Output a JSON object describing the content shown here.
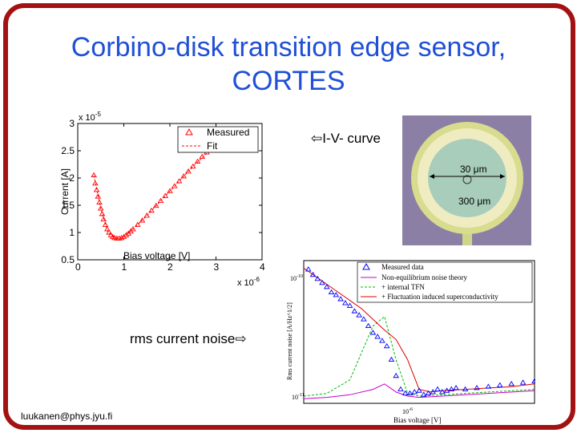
{
  "slide": {
    "title_line1": "Corbino-disk transition edge sensor,",
    "title_line2": "CORTES",
    "iv_label": "⇦I-V- curve",
    "noise_label": "rms current noise⇨",
    "email": "luukanen@phys.jyu.fi",
    "colors": {
      "title": "#1f4fd6",
      "frame": "#a31212"
    }
  },
  "photo": {
    "label_inner": "30 μm",
    "label_outer": "300 μm"
  },
  "chart_data": [
    {
      "type": "scatter",
      "xlabel": "Bias voltage [V]",
      "ylabel": "Current [A]",
      "x_multiplier": "x 10",
      "x_exponent": "-6",
      "y_multiplier": "x 10",
      "y_exponent": "-5",
      "xlim": [
        0,
        4
      ],
      "ylim": [
        0.5,
        3
      ],
      "x_ticks": [
        "0",
        "1",
        "2",
        "3",
        "4"
      ],
      "y_ticks": [
        "0.5",
        "1",
        "1.5",
        "2",
        "2.5",
        "3"
      ],
      "series": [
        {
          "name": "Measured",
          "marker": "triangle",
          "color": "#ff0000",
          "x": [
            0.35,
            0.38,
            0.41,
            0.44,
            0.47,
            0.5,
            0.53,
            0.56,
            0.6,
            0.64,
            0.68,
            0.72,
            0.76,
            0.8,
            0.85,
            0.9,
            0.95,
            1.0,
            1.05,
            1.1,
            1.15,
            1.2,
            1.3,
            1.4,
            1.5,
            1.6,
            1.7,
            1.8,
            1.9,
            2.0,
            2.1,
            2.2,
            2.3,
            2.4,
            2.5,
            2.6,
            2.7,
            2.8,
            2.9,
            3.0,
            3.05
          ],
          "y": [
            2.05,
            1.9,
            1.78,
            1.66,
            1.55,
            1.44,
            1.34,
            1.24,
            1.14,
            1.06,
            1.0,
            0.95,
            0.92,
            0.9,
            0.89,
            0.89,
            0.9,
            0.92,
            0.95,
            0.98,
            1.02,
            1.06,
            1.14,
            1.22,
            1.31,
            1.4,
            1.49,
            1.58,
            1.67,
            1.76,
            1.85,
            1.94,
            2.03,
            2.12,
            2.21,
            2.3,
            2.39,
            2.47,
            2.55,
            2.62,
            2.66
          ]
        },
        {
          "name": "Fit",
          "marker": "dashed",
          "color": "#ff0000",
          "x": [
            0.35,
            0.5,
            0.65,
            0.8,
            0.9,
            1.0,
            1.2,
            1.5,
            2.0,
            2.5,
            3.05
          ],
          "y": [
            2.05,
            1.44,
            1.02,
            0.9,
            0.89,
            0.92,
            1.06,
            1.31,
            1.76,
            2.21,
            2.66
          ]
        }
      ]
    },
    {
      "type": "line",
      "xlabel": "Bias voltage [V]",
      "ylabel": "Rms current noise [A/Hz^1/2]",
      "x_ticks": [
        "10-6"
      ],
      "y_ticks": [
        "10-10",
        "10-11"
      ],
      "legend": [
        "Measured data",
        "Non-equilibrium noise theory",
        "+ internal TFN",
        "+ Fluctuation induced superconductivity"
      ],
      "series": [
        {
          "name": "Measured data",
          "marker": "triangle",
          "color": "#0000ff",
          "x": [
            0.02,
            0.04,
            0.06,
            0.08,
            0.1,
            0.12,
            0.14,
            0.16,
            0.18,
            0.2,
            0.22,
            0.24,
            0.26,
            0.28,
            0.3,
            0.32,
            0.34,
            0.36,
            0.38,
            0.4,
            0.42,
            0.44,
            0.46,
            0.48,
            0.5,
            0.52,
            0.54,
            0.56,
            0.58,
            0.6,
            0.62,
            0.64,
            0.66,
            0.7,
            0.75,
            0.8,
            0.85,
            0.9,
            0.95,
            1.0
          ],
          "y": [
            0.97,
            0.93,
            0.9,
            0.87,
            0.84,
            0.8,
            0.78,
            0.75,
            0.72,
            0.7,
            0.66,
            0.63,
            0.6,
            0.55,
            0.5,
            0.47,
            0.44,
            0.4,
            0.3,
            0.18,
            0.08,
            0.05,
            0.05,
            0.06,
            0.07,
            0.04,
            0.05,
            0.06,
            0.08,
            0.06,
            0.07,
            0.08,
            0.09,
            0.08,
            0.09,
            0.1,
            0.11,
            0.12,
            0.13,
            0.14
          ]
        },
        {
          "name": "Non-equilibrium noise theory",
          "color": "#cc00cc",
          "x": [
            0.0,
            0.1,
            0.2,
            0.3,
            0.35,
            0.4,
            0.45,
            0.5,
            0.6,
            0.8,
            1.0
          ],
          "y": [
            0.01,
            0.02,
            0.04,
            0.08,
            0.12,
            0.06,
            0.03,
            0.02,
            0.03,
            0.05,
            0.07
          ]
        },
        {
          "name": "+ internal TFN",
          "color": "#00bb00",
          "x": [
            0.0,
            0.1,
            0.2,
            0.25,
            0.3,
            0.35,
            0.4,
            0.45,
            0.5,
            0.6,
            0.8,
            1.0
          ],
          "y": [
            0.03,
            0.05,
            0.15,
            0.35,
            0.55,
            0.62,
            0.3,
            0.05,
            0.03,
            0.04,
            0.06,
            0.08
          ]
        },
        {
          "name": "+ Fluctuation induced superconductivity",
          "color": "#dd0000",
          "x": [
            0.0,
            0.05,
            0.1,
            0.15,
            0.2,
            0.25,
            0.3,
            0.35,
            0.4,
            0.45,
            0.5,
            0.55,
            0.6,
            0.7,
            0.8,
            0.9,
            1.0
          ],
          "y": [
            0.98,
            0.92,
            0.86,
            0.8,
            0.74,
            0.68,
            0.6,
            0.52,
            0.45,
            0.3,
            0.08,
            0.06,
            0.07,
            0.08,
            0.09,
            0.1,
            0.12
          ]
        }
      ]
    }
  ]
}
